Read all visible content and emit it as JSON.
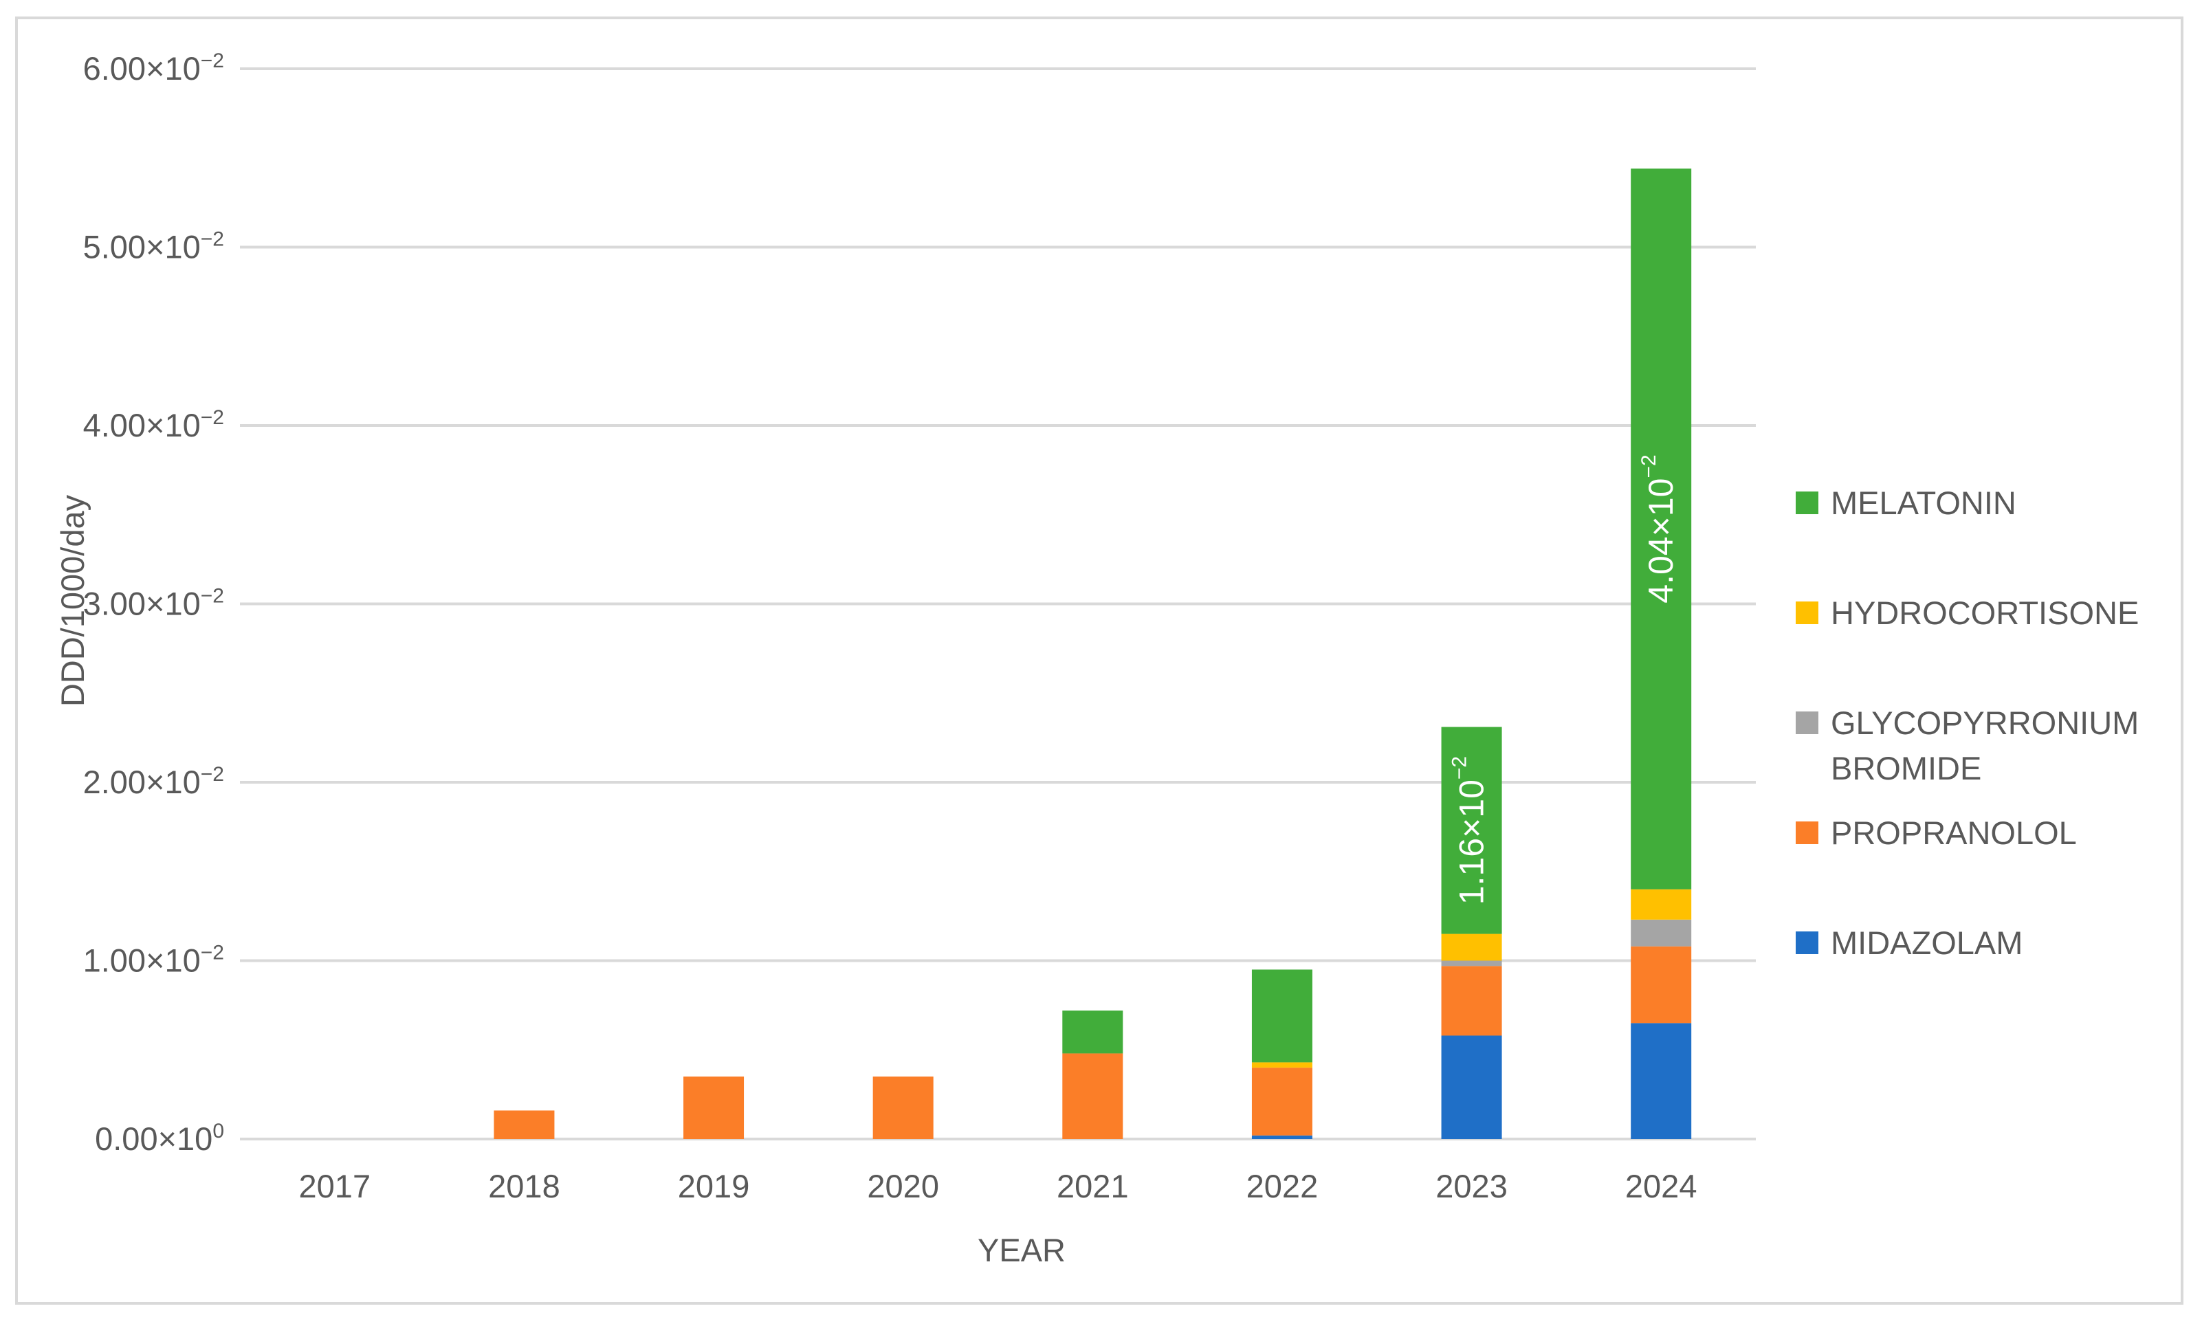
{
  "chart_data": {
    "type": "bar",
    "stacked": true,
    "xlabel": "YEAR",
    "ylabel": "DDD/1000/day",
    "categories": [
      "2017",
      "2018",
      "2019",
      "2020",
      "2021",
      "2022",
      "2023",
      "2024"
    ],
    "ylim": [
      0,
      0.06
    ],
    "yticks": [
      {
        "value": 0,
        "mantissa": "0.00",
        "exp": "0"
      },
      {
        "value": 0.01,
        "mantissa": "1.00",
        "exp": "−2"
      },
      {
        "value": 0.02,
        "mantissa": "2.00",
        "exp": "−2"
      },
      {
        "value": 0.03,
        "mantissa": "3.00",
        "exp": "−2"
      },
      {
        "value": 0.04,
        "mantissa": "4.00",
        "exp": "−2"
      },
      {
        "value": 0.05,
        "mantissa": "5.00",
        "exp": "−2"
      },
      {
        "value": 0.06,
        "mantissa": "6.00",
        "exp": "−2"
      }
    ],
    "grid": true,
    "legend_position": "right",
    "series": [
      {
        "name": "MIDAZOLAM",
        "color": "#1f6fc7",
        "values": [
          0,
          0,
          0,
          0,
          0,
          0.0002,
          0.0058,
          0.0065
        ]
      },
      {
        "name": "PROPRANOLOL",
        "color": "#fb7e28",
        "values": [
          0,
          0.0016,
          0.0035,
          0.0035,
          0.0048,
          0.0038,
          0.0039,
          0.0043
        ]
      },
      {
        "name": "GLYCOPYRRONIUM BROMIDE",
        "color": "#a5a5a5",
        "values": [
          0,
          0,
          0,
          0,
          0,
          0,
          0.0003,
          0.0015
        ]
      },
      {
        "name": "HYDROCORTISONE",
        "color": "#ffc000",
        "values": [
          0,
          0,
          0,
          0,
          0,
          0.0003,
          0.0015,
          0.0017
        ]
      },
      {
        "name": "MELATONIN",
        "color": "#41ad3a",
        "values": [
          0,
          0,
          0,
          0,
          0.0024,
          0.0052,
          0.0116,
          0.0404
        ]
      }
    ],
    "annotations": [
      {
        "category": "2023",
        "series": "MELATONIN",
        "mantissa": "1.16",
        "exp": "−2"
      },
      {
        "category": "2024",
        "series": "MELATONIN",
        "mantissa": "4.04",
        "exp": "−2"
      }
    ],
    "legend": [
      {
        "lines": [
          "MELATONIN"
        ],
        "color": "#41ad3a"
      },
      {
        "lines": [
          "HYDROCORTISONE"
        ],
        "color": "#ffc000"
      },
      {
        "lines": [
          "GLYCOPYRRONIUM",
          "BROMIDE"
        ],
        "color": "#a5a5a5"
      },
      {
        "lines": [
          "PROPRANOLOL"
        ],
        "color": "#fb7e28"
      },
      {
        "lines": [
          "MIDAZOLAM"
        ],
        "color": "#1f6fc7"
      }
    ]
  }
}
